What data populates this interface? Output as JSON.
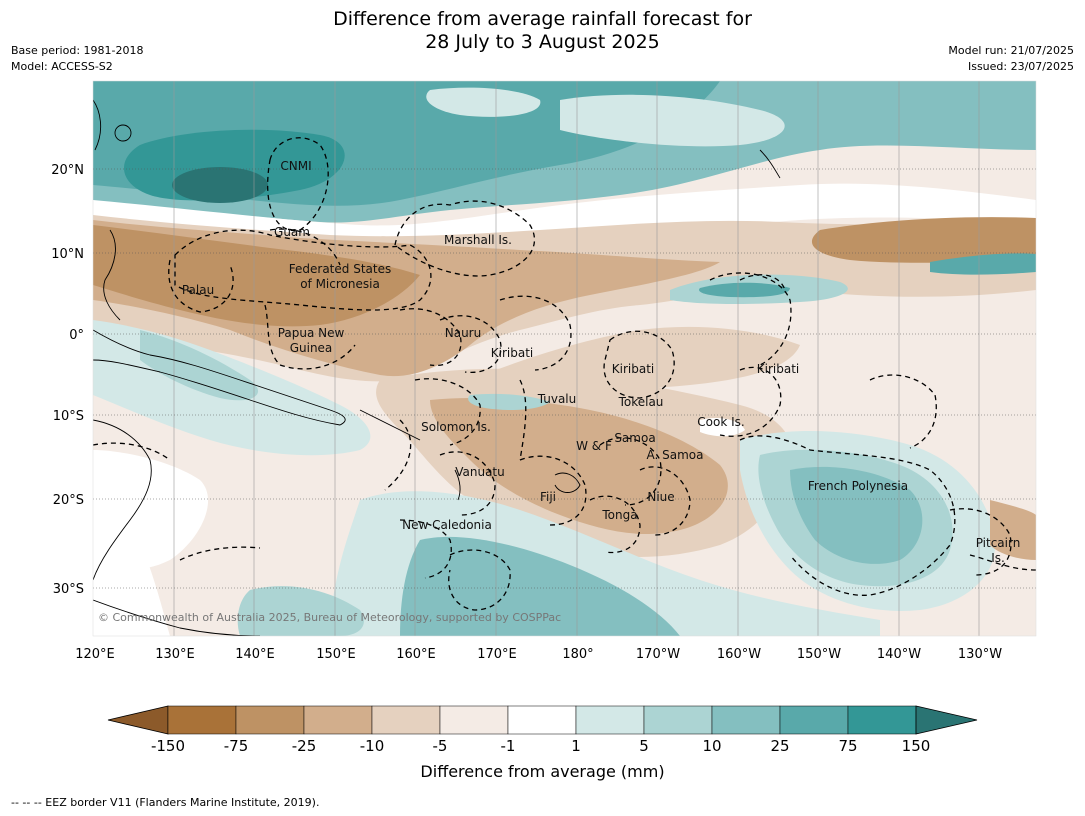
{
  "title": {
    "line1": "Difference from average rainfall forecast for",
    "line2": "28 July to 3 August 2025"
  },
  "meta_left": {
    "base_period": "Base period: 1981-2018",
    "model": "Model: ACCESS-S2"
  },
  "meta_right": {
    "model_run": "Model run: 21/07/2025",
    "issued": "Issued: 23/07/2025"
  },
  "map": {
    "lon_labels": [
      "120°E",
      "130°E",
      "140°E",
      "150°E",
      "160°E",
      "170°E",
      "180°",
      "170°W",
      "160°W",
      "150°W",
      "140°W",
      "130°W"
    ],
    "lat_labels": [
      "20°N",
      "10°N",
      "0°",
      "10°S",
      "20°S",
      "30°S"
    ],
    "region_labels": [
      {
        "text": "CNMI"
      },
      {
        "text": "Guam"
      },
      {
        "text": "Marshall Is."
      },
      {
        "text": "Federated States"
      },
      {
        "text": "of Micronesia"
      },
      {
        "text": "Palau"
      },
      {
        "text": "Papua New"
      },
      {
        "text": "Guinea"
      },
      {
        "text": "Nauru"
      },
      {
        "text": "Kiribati"
      },
      {
        "text": "Kiribati"
      },
      {
        "text": "Kiribati"
      },
      {
        "text": "Tuvalu"
      },
      {
        "text": "Tokelau"
      },
      {
        "text": "Cook Is."
      },
      {
        "text": "Solomon Is."
      },
      {
        "text": "W & F"
      },
      {
        "text": "Samoa"
      },
      {
        "text": "A. Samoa"
      },
      {
        "text": "Vanuatu"
      },
      {
        "text": "Fiji"
      },
      {
        "text": "Niue"
      },
      {
        "text": "Tonga"
      },
      {
        "text": "French Polynesia"
      },
      {
        "text": "New Caledonia"
      },
      {
        "text": "Pitcairn"
      },
      {
        "text": "Is."
      }
    ],
    "copyright": "© Commonwealth of Australia 2025, Bureau of Meteorology, supported by COSPPac"
  },
  "colorbar": {
    "title": "Difference from average (mm)",
    "ticks": [
      "-150",
      "-75",
      "-25",
      "-10",
      "-5",
      "-1",
      "1",
      "5",
      "10",
      "25",
      "75",
      "150"
    ],
    "colors": [
      "#8c5a2a",
      "#a97238",
      "#be9264",
      "#d2ae8c",
      "#e5d1bf",
      "#f4ebe5",
      "#ffffff",
      "#d3e8e7",
      "#acd4d3",
      "#84bfc0",
      "#59a9aa",
      "#339796",
      "#2a7473"
    ]
  },
  "footnote": "--  --  -- EEZ border V11 (Flanders Marine Institute, 2019)."
}
